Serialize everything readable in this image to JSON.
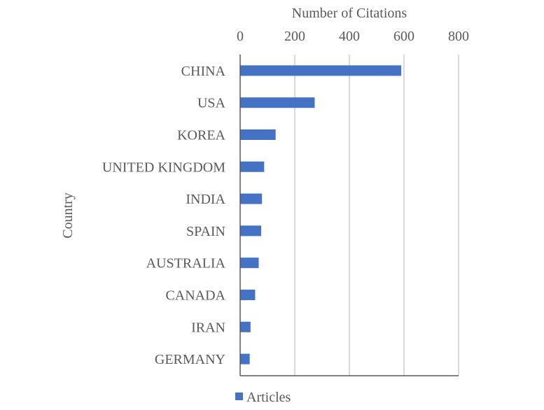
{
  "chart_data": {
    "type": "bar",
    "orientation": "horizontal",
    "xlabel": "Number of Citations",
    "ylabel": "Country",
    "x_axis_position": "top",
    "xlim": [
      0,
      800
    ],
    "xticks": [
      0,
      200,
      400,
      600,
      800
    ],
    "xtick_labels": [
      "0",
      "200",
      "400",
      "600",
      "800"
    ],
    "categories": [
      "CHINA",
      "USA",
      "KOREA",
      "UNITED KINGDOM",
      "INDIA",
      "SPAIN",
      "AUSTRALIA",
      "CANADA",
      "IRAN",
      "GERMANY"
    ],
    "series": [
      {
        "name": "Articles",
        "values": [
          590,
          273,
          130,
          88,
          80,
          77,
          68,
          55,
          38,
          35
        ]
      }
    ],
    "grid": true,
    "legend_position": "bottom-left",
    "colors": {
      "bar": "#4472C4",
      "grid": "#D9D9D9",
      "axis": "#595959",
      "text": "#595959"
    }
  }
}
